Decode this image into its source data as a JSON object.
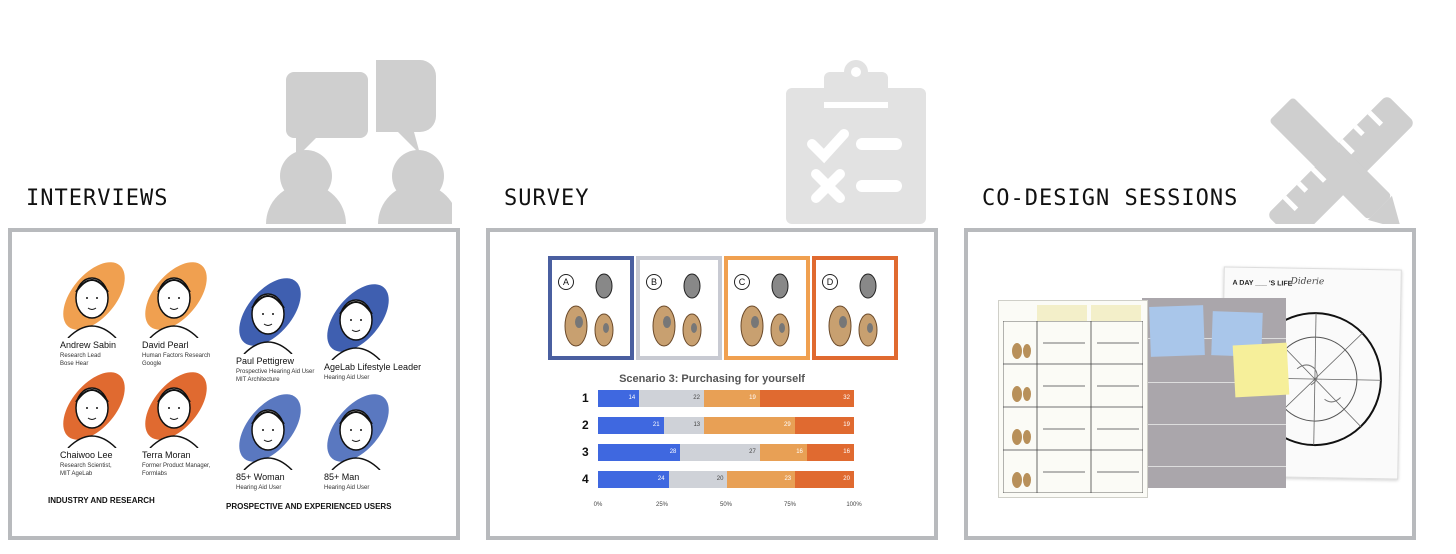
{
  "sections": [
    {
      "title": "INTERVIEWS",
      "icon": "conversation-icon"
    },
    {
      "title": "SURVEY",
      "icon": "clipboard-checklist-icon"
    },
    {
      "title": "CO-DESIGN SESSIONS",
      "icon": "ruler-pencil-icon"
    }
  ],
  "interviews": {
    "people": [
      {
        "name": "Andrew Sabin",
        "sub": [
          "Research Lead",
          "Bose Hear"
        ],
        "color": "#f0a050"
      },
      {
        "name": "David Pearl",
        "sub": [
          "Human Factors Research",
          "Google"
        ],
        "color": "#f0a050"
      },
      {
        "name": "Paul Pettigrew",
        "sub": [
          "Prospective Hearing Aid User",
          "MIT Architecture"
        ],
        "color": "#3f5fb0"
      },
      {
        "name": "AgeLab Lifestyle Leader",
        "sub": [
          "Hearing Aid User"
        ],
        "color": "#3f5fb0"
      },
      {
        "name": "Chaiwoo Lee",
        "sub": [
          "Research Scientist,",
          "MIT AgeLab"
        ],
        "color": "#e06a30"
      },
      {
        "name": "Terra Moran",
        "sub": [
          "Former Product Manager,",
          "Formlabs"
        ],
        "color": "#e06a30"
      },
      {
        "name": "85+ Woman",
        "sub": [
          "Hearing Aid User"
        ],
        "color": "#5a78c0"
      },
      {
        "name": "85+ Man",
        "sub": [
          "Hearing Aid User"
        ],
        "color": "#5a78c0"
      }
    ],
    "group_labels": [
      "INDUSTRY AND RESEARCH",
      "PROSPECTIVE AND EXPERIENCED USERS"
    ]
  },
  "survey": {
    "devices": [
      {
        "letter": "A",
        "border": "#4a5fa0"
      },
      {
        "letter": "B",
        "border": "#c8cad2"
      },
      {
        "letter": "C",
        "border": "#f0a050"
      },
      {
        "letter": "D",
        "border": "#e06a30"
      }
    ],
    "colors": [
      "#3f68e0",
      "#cfd2d8",
      "#e8a055",
      "#e06a30"
    ]
  },
  "chart_data": {
    "type": "bar",
    "title": "Scenario 3: Purchasing for yourself",
    "stacked": true,
    "orientation": "horizontal",
    "categories": [
      "1",
      "2",
      "3",
      "4"
    ],
    "series": [
      {
        "values": [
          14,
          21,
          28,
          24
        ]
      },
      {
        "values": [
          22,
          13,
          27,
          20
        ]
      },
      {
        "values": [
          19,
          29,
          16,
          23
        ]
      },
      {
        "values": [
          32,
          19,
          16,
          20
        ]
      }
    ],
    "xticks": [
      "0%",
      "25%",
      "50%",
      "75%",
      "100%"
    ]
  },
  "codesign": {
    "sheet_title": "A DAY ___ 'S LIFE",
    "sheet_handwritten": "Diderie"
  }
}
